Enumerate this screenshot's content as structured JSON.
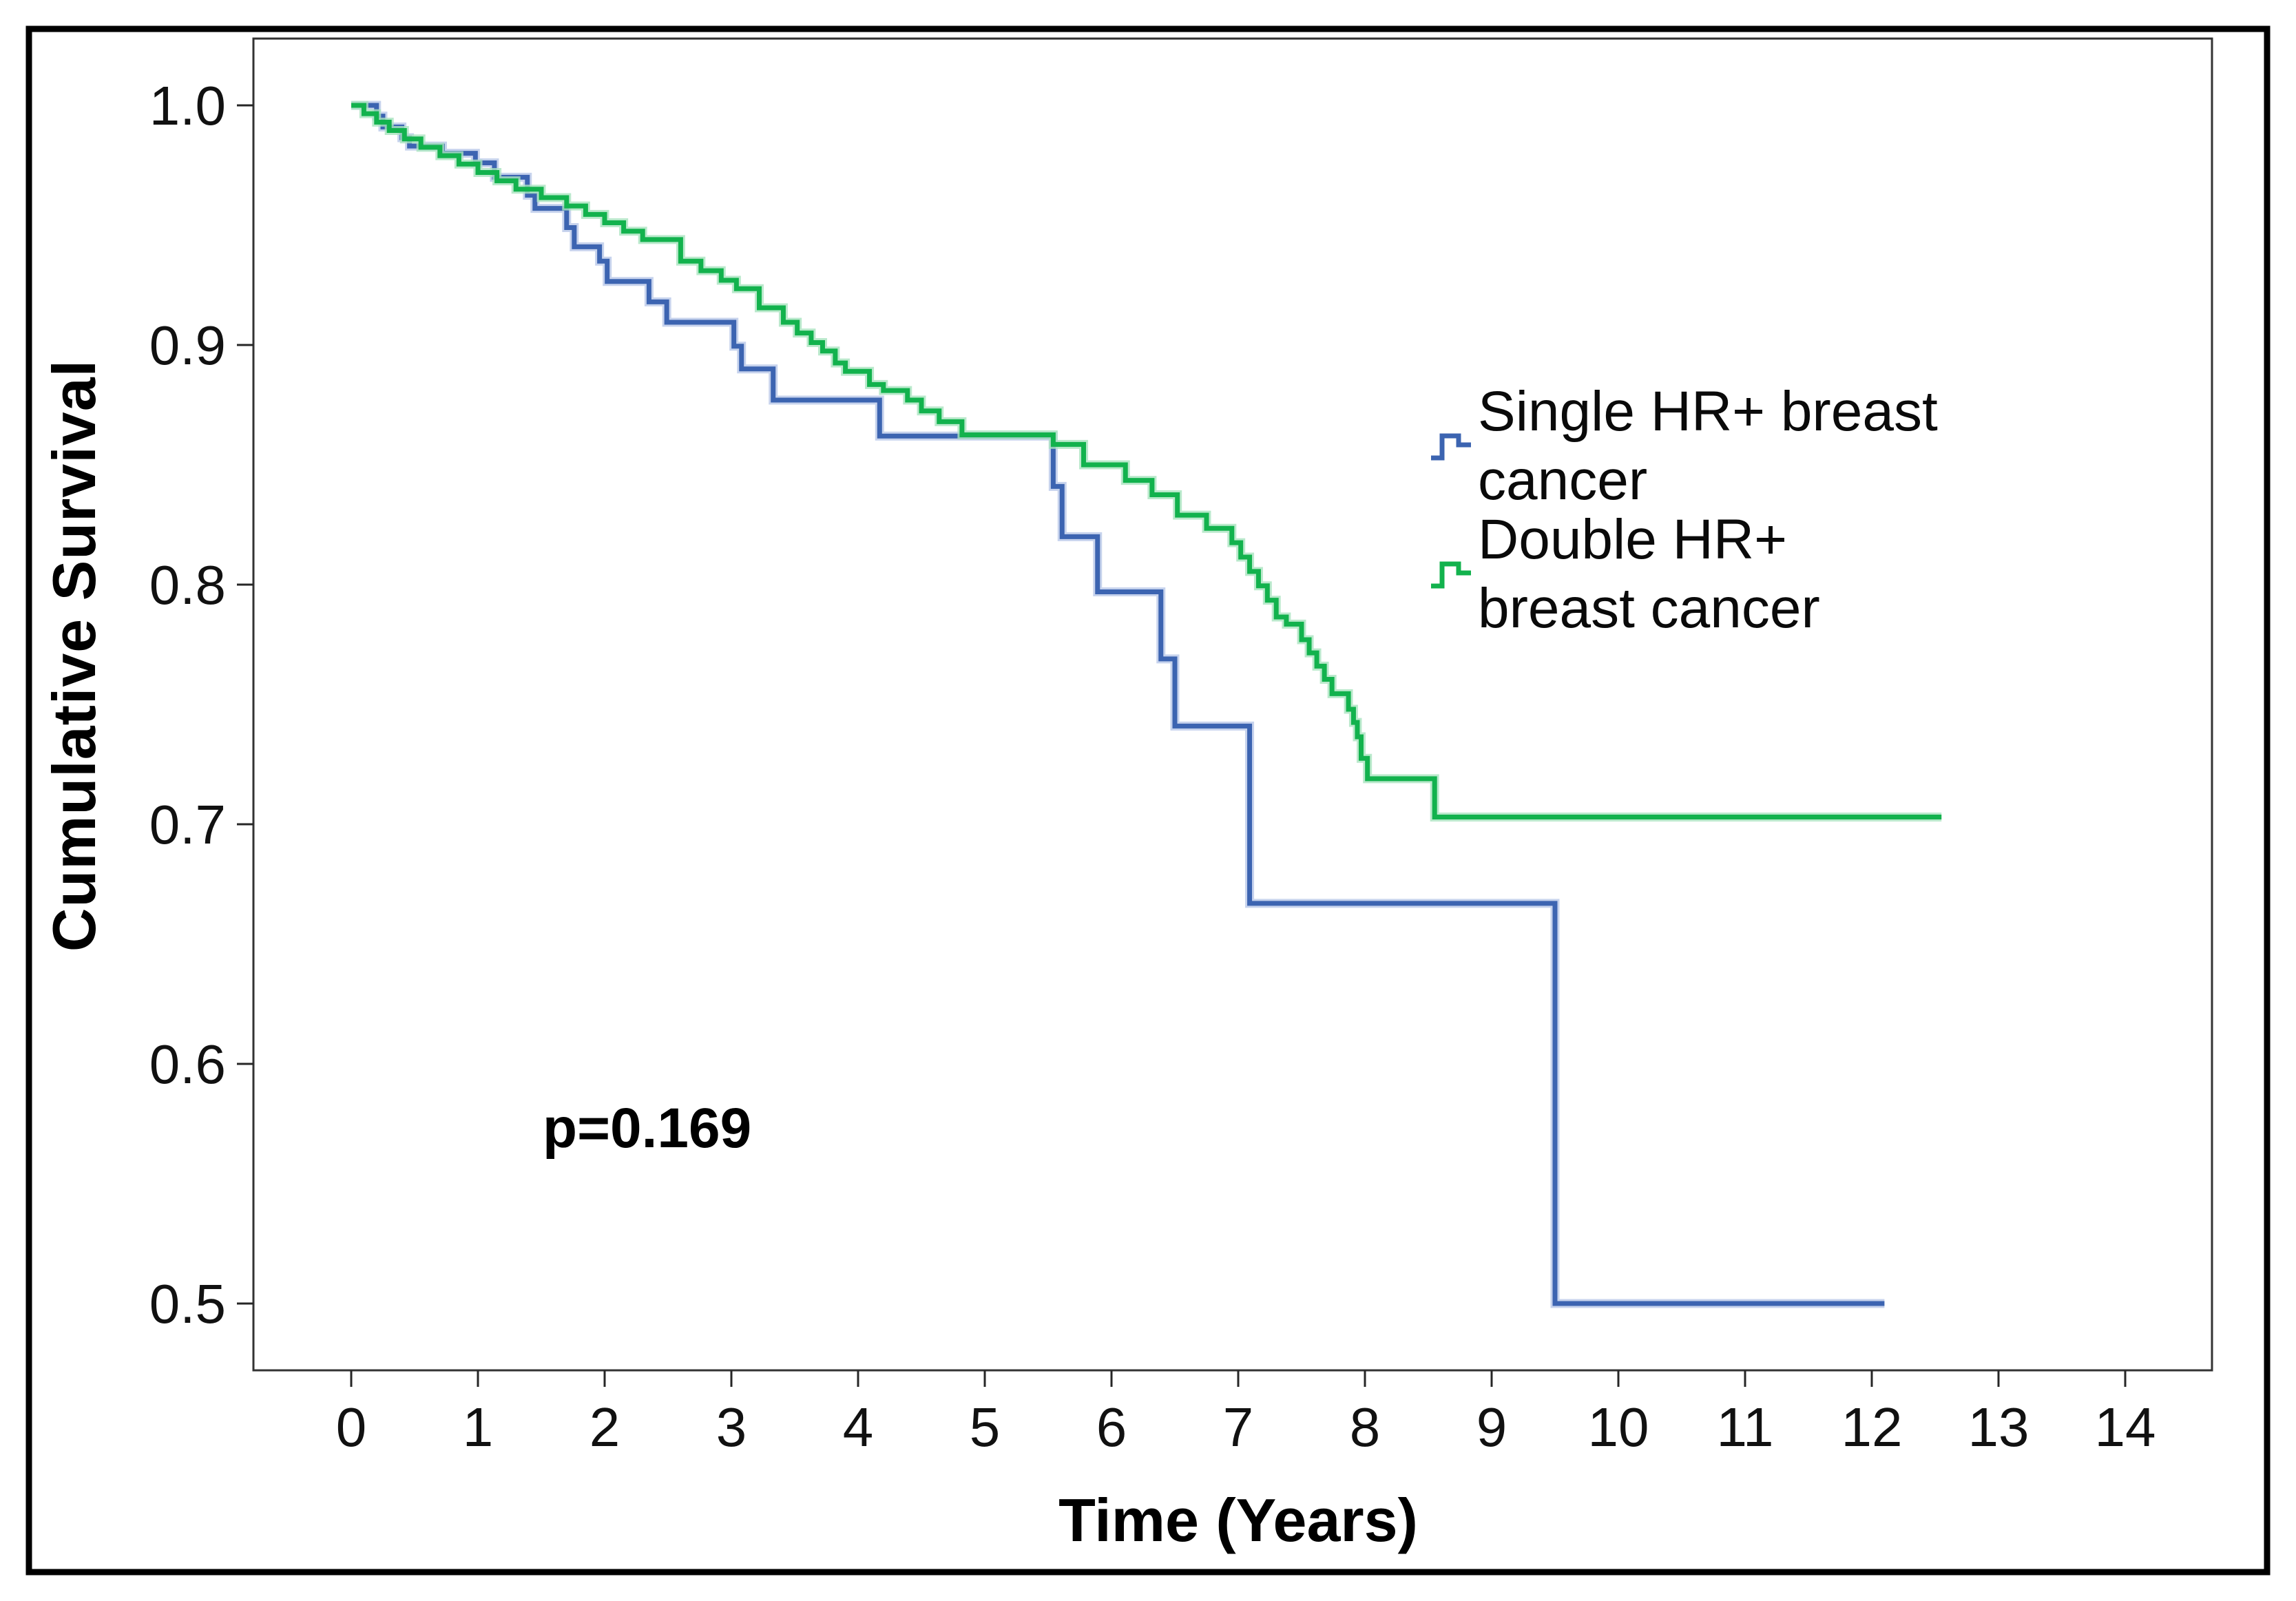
{
  "figure": {
    "p_annotation": "p=0.169",
    "border_color": "#000000",
    "frame_color": "#333333",
    "background": "#ffffff"
  },
  "legend": {
    "single": {
      "line1": "Single HR+ breast",
      "line2": "cancer"
    },
    "double": {
      "line1": "Double HR+",
      "line2": "breast cancer"
    }
  },
  "chart_data": {
    "type": "line",
    "subtype": "kaplan-meier-step",
    "title": "",
    "xlabel": "Time (Years)",
    "ylabel": "Cumulative Survival",
    "x_range": [
      0,
      14
    ],
    "y_range": [
      0.5,
      1.0
    ],
    "x_ticks": [
      0,
      1,
      2,
      3,
      4,
      5,
      6,
      7,
      8,
      9,
      10,
      11,
      12,
      13,
      14
    ],
    "x_tick_labels": [
      "0",
      "1",
      "2",
      "3",
      "4",
      "5",
      "6",
      "7",
      "8",
      "9",
      "10",
      "11",
      "12",
      "13",
      "14"
    ],
    "y_ticks": [
      1.0,
      0.9,
      0.8,
      0.7,
      0.6,
      0.5
    ],
    "y_tick_labels": [
      "1.0",
      "0.9",
      "0.8",
      "0.7",
      "0.6",
      "0.5"
    ],
    "grid": false,
    "legend_position": "right-inside",
    "annotation": {
      "text": "p=0.169",
      "x": 1.6,
      "y": 0.585
    },
    "series": [
      {
        "name": "Single HR+ breast cancer",
        "color": "#3C64B1",
        "halo_color": "#B9C8E8",
        "end_t": 12.1,
        "points": [
          [
            0,
            1.0
          ],
          [
            0.2,
            0.9955
          ],
          [
            0.25,
            0.991
          ],
          [
            0.4,
            0.9865
          ],
          [
            0.46,
            0.983
          ],
          [
            0.72,
            0.98
          ],
          [
            0.98,
            0.976
          ],
          [
            1.13,
            0.97
          ],
          [
            1.39,
            0.9625
          ],
          [
            1.45,
            0.957
          ],
          [
            1.7,
            0.949
          ],
          [
            1.76,
            0.941
          ],
          [
            1.96,
            0.935
          ],
          [
            2.02,
            0.9265
          ],
          [
            2.35,
            0.918
          ],
          [
            2.49,
            0.9095
          ],
          [
            3.02,
            0.8995
          ],
          [
            3.08,
            0.89
          ],
          [
            3.33,
            0.877
          ],
          [
            4.17,
            0.862
          ],
          [
            5.54,
            0.841
          ],
          [
            5.61,
            0.82
          ],
          [
            5.89,
            0.797
          ],
          [
            6.39,
            0.769
          ],
          [
            6.5,
            0.741
          ],
          [
            7.09,
            0.667
          ],
          [
            9.5,
            0.5
          ]
        ]
      },
      {
        "name": "Double HR+ breast cancer",
        "color": "#12B24D",
        "halo_color": "#A9E3BF",
        "end_t": 12.55,
        "points": [
          [
            0,
            1.0
          ],
          [
            0.1,
            0.9965
          ],
          [
            0.2,
            0.993
          ],
          [
            0.3,
            0.9895
          ],
          [
            0.42,
            0.986
          ],
          [
            0.55,
            0.9825
          ],
          [
            0.7,
            0.979
          ],
          [
            0.85,
            0.9755
          ],
          [
            1.0,
            0.972
          ],
          [
            1.15,
            0.9685
          ],
          [
            1.3,
            0.965
          ],
          [
            1.5,
            0.9615
          ],
          [
            1.7,
            0.958
          ],
          [
            1.85,
            0.9545
          ],
          [
            2.0,
            0.951
          ],
          [
            2.15,
            0.9475
          ],
          [
            2.3,
            0.944
          ],
          [
            2.6,
            0.935
          ],
          [
            2.76,
            0.931
          ],
          [
            2.92,
            0.927
          ],
          [
            3.04,
            0.9235
          ],
          [
            3.22,
            0.9155
          ],
          [
            3.41,
            0.9095
          ],
          [
            3.52,
            0.905
          ],
          [
            3.63,
            0.901
          ],
          [
            3.72,
            0.8975
          ],
          [
            3.82,
            0.8925
          ],
          [
            3.9,
            0.889
          ],
          [
            4.09,
            0.8835
          ],
          [
            4.2,
            0.881
          ],
          [
            4.39,
            0.877
          ],
          [
            4.5,
            0.8725
          ],
          [
            4.64,
            0.868
          ],
          [
            4.82,
            0.8625
          ],
          [
            5.54,
            0.8585
          ],
          [
            5.78,
            0.85
          ],
          [
            6.11,
            0.8435
          ],
          [
            6.32,
            0.8375
          ],
          [
            6.52,
            0.829
          ],
          [
            6.75,
            0.8235
          ],
          [
            6.95,
            0.8175
          ],
          [
            7.02,
            0.8115
          ],
          [
            7.09,
            0.8055
          ],
          [
            7.16,
            0.7995
          ],
          [
            7.23,
            0.7935
          ],
          [
            7.3,
            0.7865
          ],
          [
            7.38,
            0.7835
          ],
          [
            7.5,
            0.777
          ],
          [
            7.56,
            0.7715
          ],
          [
            7.62,
            0.766
          ],
          [
            7.68,
            0.7605
          ],
          [
            7.74,
            0.7545
          ],
          [
            7.87,
            0.748
          ],
          [
            7.91,
            0.7425
          ],
          [
            7.94,
            0.7365
          ],
          [
            7.97,
            0.7275
          ],
          [
            8.02,
            0.719
          ],
          [
            8.55,
            0.703
          ]
        ]
      }
    ]
  }
}
